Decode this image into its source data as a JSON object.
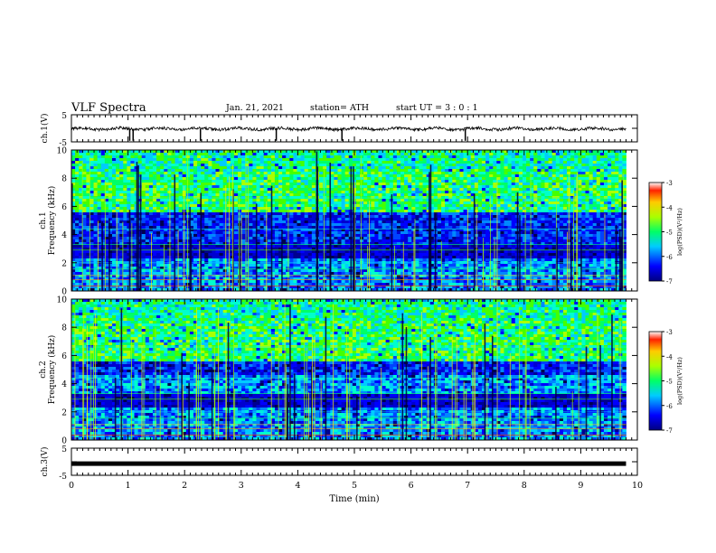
{
  "header": {
    "title": "VLF Spectra",
    "date": "Jan. 21, 2021",
    "station": "station= ATH",
    "start": "start UT =  3 : 0 : 1"
  },
  "chart_data": [
    {
      "type": "line",
      "name": "ch1-waveform",
      "ylabel": "ch.1(V)",
      "xlim": [
        0,
        10
      ],
      "ylim": [
        -5,
        5
      ],
      "yticks": [
        "5",
        "-5"
      ],
      "description_level": -0.2,
      "dropouts_min": [
        1.03,
        1.09,
        2.28,
        3.62,
        4.78,
        6.96
      ]
    },
    {
      "type": "heatmap",
      "name": "ch1-spectrogram",
      "ylabel": "ch.1\nFrequency (kHz)",
      "xlim": [
        0,
        9.8
      ],
      "ylim": [
        0,
        10
      ],
      "yticks": [
        "0",
        "2",
        "4",
        "6",
        "8",
        "10"
      ],
      "colorbar": {
        "label": "log(PSD)(V²/Hz)",
        "range": [
          -7,
          -3
        ],
        "ticks": [
          "-3",
          "-4",
          "-5",
          "-6",
          "-7"
        ]
      }
    },
    {
      "type": "heatmap",
      "name": "ch2-spectrogram",
      "ylabel": "ch.2\nFrequency (kHz)",
      "xlim": [
        0,
        9.8
      ],
      "ylim": [
        0,
        10
      ],
      "yticks": [
        "0",
        "2",
        "4",
        "6",
        "8",
        "10"
      ],
      "colorbar": {
        "label": "log(PSD)(V²/Hz)",
        "range": [
          -7,
          -3
        ],
        "ticks": [
          "-3",
          "-4",
          "-5",
          "-6",
          "-7"
        ]
      }
    },
    {
      "type": "line",
      "name": "ch3-waveform",
      "ylabel": "ch.3(V)",
      "xlim": [
        0,
        10
      ],
      "ylim": [
        -5,
        5
      ],
      "yticks": [
        "5",
        "-5"
      ],
      "level": -0.7
    }
  ],
  "xaxis": {
    "label": "Time (min)",
    "range": [
      0,
      10
    ],
    "ticks": [
      "0",
      "1",
      "2",
      "3",
      "4",
      "5",
      "6",
      "7",
      "8",
      "9",
      "10"
    ]
  }
}
